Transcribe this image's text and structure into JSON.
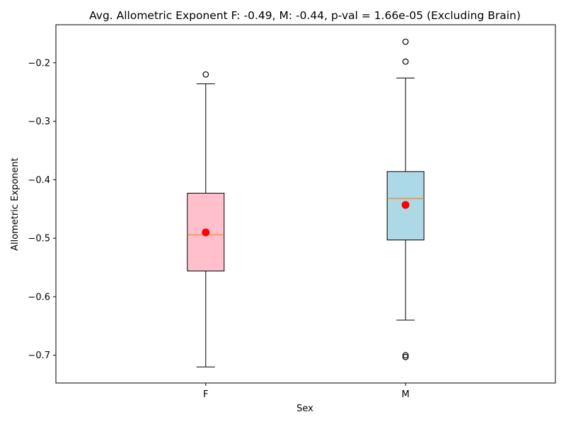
{
  "chart_data": {
    "type": "box",
    "title": "Avg. Allometric Exponent F: -0.49, M: -0.44, p-val = 1.66e-05 (Excluding Brain)",
    "xlabel": "Sex",
    "ylabel": "Allometric Exponent",
    "ylim": [
      -0.7475,
      -0.135
    ],
    "yticks": [
      -0.2,
      -0.3,
      -0.4,
      -0.5,
      -0.6,
      -0.7
    ],
    "ytick_labels": [
      "−0.2",
      "−0.3",
      "−0.4",
      "−0.5",
      "−0.6",
      "−0.7"
    ],
    "categories": [
      "F",
      "M"
    ],
    "grid": false,
    "series": [
      {
        "category": "F",
        "color": "#ffc0cb",
        "whisker_low": -0.72,
        "q1": -0.556,
        "median": -0.494,
        "q3": -0.423,
        "whisker_high": -0.236,
        "mean": -0.49,
        "outliers": [
          -0.22
        ]
      },
      {
        "category": "M",
        "color": "#add8e6",
        "whisker_low": -0.64,
        "q1": -0.503,
        "median": -0.432,
        "q3": -0.386,
        "whisker_high": -0.226,
        "mean": -0.443,
        "outliers": [
          -0.164,
          -0.198,
          -0.7,
          -0.703
        ]
      }
    ],
    "median_color": "#ff7f0e",
    "mean_color": "#ff0000"
  }
}
